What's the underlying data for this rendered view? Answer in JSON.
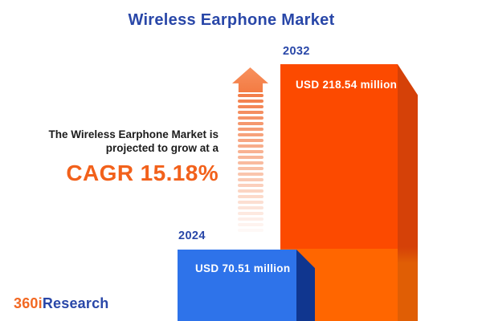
{
  "page": {
    "title": "Wireless Earphone Market"
  },
  "annotation": {
    "line1": "The Wireless Earphone Market is",
    "line2": "projected to grow at a",
    "cagr_label": "CAGR 15.18%",
    "cagr_percent": 15.18
  },
  "chart_data": {
    "type": "bar",
    "title": "Wireless Earphone Market",
    "unit": "USD million",
    "categories": [
      "2024",
      "2032"
    ],
    "values": [
      70.51,
      218.54
    ],
    "value_labels": [
      "USD 70.51 million",
      "USD 218.54 million"
    ],
    "cagr_percent": 15.18,
    "series_colors": [
      "#2E73EA",
      "#FC4A00"
    ],
    "legend_position": "none",
    "grid": false,
    "style": "3d-infographic-bars"
  },
  "icons": {
    "growth_arrow": "striped-up-arrow-icon"
  },
  "logo": {
    "part1": "360i",
    "part2": "Research"
  },
  "colors": {
    "title_blue": "#2947A8",
    "cagr_orange": "#F2611B",
    "bar_2024_face": "#2E73EA",
    "bar_2024_side": "#10368F",
    "bar_2032_face_top": "#FC4A00",
    "bar_2032_face_bottom": "#FF6600",
    "bar_2032_side_top": "#D54108",
    "bar_2032_side_bottom": "#E05E05",
    "arrow_orange": "#F37E4A",
    "text_dark": "#1C1C1C",
    "background": "#FFFFFF"
  },
  "arrow": {
    "stripe_count": 25
  }
}
